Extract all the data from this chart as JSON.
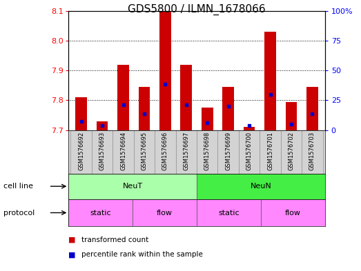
{
  "title": "GDS5800 / ILMN_1678066",
  "samples": [
    "GSM1576692",
    "GSM1576693",
    "GSM1576694",
    "GSM1576695",
    "GSM1576696",
    "GSM1576697",
    "GSM1576698",
    "GSM1576699",
    "GSM1576700",
    "GSM1576701",
    "GSM1576702",
    "GSM1576703"
  ],
  "red_values": [
    7.81,
    7.73,
    7.92,
    7.845,
    8.105,
    7.92,
    7.775,
    7.845,
    7.71,
    8.03,
    7.795,
    7.845
  ],
  "blue_values": [
    7.73,
    7.715,
    7.785,
    7.755,
    7.855,
    7.785,
    7.725,
    7.78,
    7.715,
    7.82,
    7.72,
    7.755
  ],
  "ylim_left": [
    7.7,
    8.1
  ],
  "ylim_right": [
    0,
    100
  ],
  "yticks_left": [
    7.7,
    7.8,
    7.9,
    8.0,
    8.1
  ],
  "yticks_right": [
    0,
    25,
    50,
    75,
    100
  ],
  "right_tick_labels": [
    "0",
    "25",
    "50",
    "75",
    "100%"
  ],
  "cell_line_groups": [
    {
      "label": "NeuT",
      "start": 0,
      "end": 6,
      "color": "#AAFFAA"
    },
    {
      "label": "NeuN",
      "start": 6,
      "end": 12,
      "color": "#44EE44"
    }
  ],
  "protocol_groups": [
    {
      "label": "static",
      "start": 0,
      "end": 3,
      "color": "#FF88FF"
    },
    {
      "label": "flow",
      "start": 3,
      "end": 6,
      "color": "#FF88FF"
    },
    {
      "label": "static",
      "start": 6,
      "end": 9,
      "color": "#FF88FF"
    },
    {
      "label": "flow",
      "start": 9,
      "end": 12,
      "color": "#FF88FF"
    }
  ],
  "bar_color": "#CC0000",
  "blue_color": "#0000CC",
  "base_value": 7.7,
  "bar_width": 0.55,
  "title_fontsize": 11,
  "tick_fontsize": 8,
  "sample_fontsize": 6,
  "row_label_fontsize": 8,
  "group_label_fontsize": 8,
  "legend_fontsize": 7.5
}
